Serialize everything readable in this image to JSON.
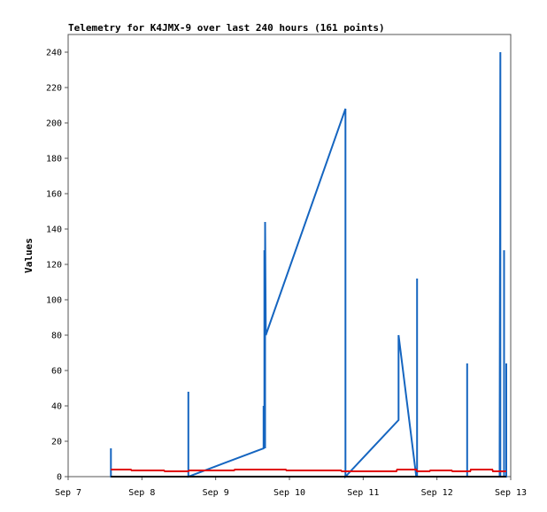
{
  "chart_data": {
    "type": "line",
    "title": "Telemetry for K4JMX-9 over last 240 hours (161 points)",
    "xlabel": "",
    "ylabel": "Values",
    "xlim": [
      7,
      13
    ],
    "ylim": [
      0,
      250
    ],
    "x_unit": "day of September",
    "x_ticks": [
      {
        "value": 7,
        "label": "Sep 7"
      },
      {
        "value": 8,
        "label": "Sep 8"
      },
      {
        "value": 9,
        "label": "Sep 9"
      },
      {
        "value": 10,
        "label": "Sep 10"
      },
      {
        "value": 11,
        "label": "Sep 11"
      },
      {
        "value": 12,
        "label": "Sep 12"
      },
      {
        "value": 13,
        "label": "Sep 13"
      }
    ],
    "y_ticks": [
      0,
      20,
      40,
      60,
      80,
      100,
      120,
      140,
      160,
      180,
      200,
      220,
      240
    ],
    "grid": false,
    "legend": "none",
    "series": [
      {
        "color": "#1565c0",
        "x": [
          7.58,
          7.58,
          7.58,
          8.63,
          8.63,
          8.63,
          9.65,
          9.65,
          9.66,
          9.66,
          9.67,
          9.67,
          9.68,
          9.68,
          10.76,
          10.76,
          10.76,
          11.48,
          11.48,
          11.72,
          11.73,
          11.73,
          11.73,
          12.41,
          12.41,
          12.41,
          12.85,
          12.85,
          12.86,
          12.86,
          12.91,
          12.91,
          12.91,
          12.94,
          12.94,
          12.94
        ],
        "values": [
          0,
          16,
          0,
          0,
          48,
          0,
          16,
          40,
          16,
          128,
          16,
          144,
          80,
          80,
          208,
          0,
          0,
          32,
          80,
          0,
          0,
          112,
          0,
          0,
          64,
          0,
          0,
          16,
          240,
          0,
          0,
          128,
          0,
          0,
          64,
          0
        ]
      },
      {
        "color": "#e00000",
        "x": [
          7.58,
          7.85,
          7.86,
          8.3,
          8.31,
          8.63,
          8.64,
          9.25,
          9.26,
          9.95,
          9.96,
          10.7,
          10.71,
          11.45,
          11.46,
          11.72,
          11.73,
          11.9,
          11.91,
          12.2,
          12.21,
          12.45,
          12.46,
          12.75,
          12.76,
          12.94
        ],
        "values": [
          4,
          4,
          3.5,
          3.5,
          3,
          3,
          3.5,
          3.5,
          4,
          4,
          3.5,
          3.5,
          3,
          3,
          4,
          4,
          3,
          3,
          3.5,
          3.5,
          3,
          3,
          4,
          4,
          3,
          3
        ]
      },
      {
        "color": "#000000",
        "x": [
          7.58,
          12.94
        ],
        "values": [
          0,
          0
        ]
      }
    ]
  }
}
